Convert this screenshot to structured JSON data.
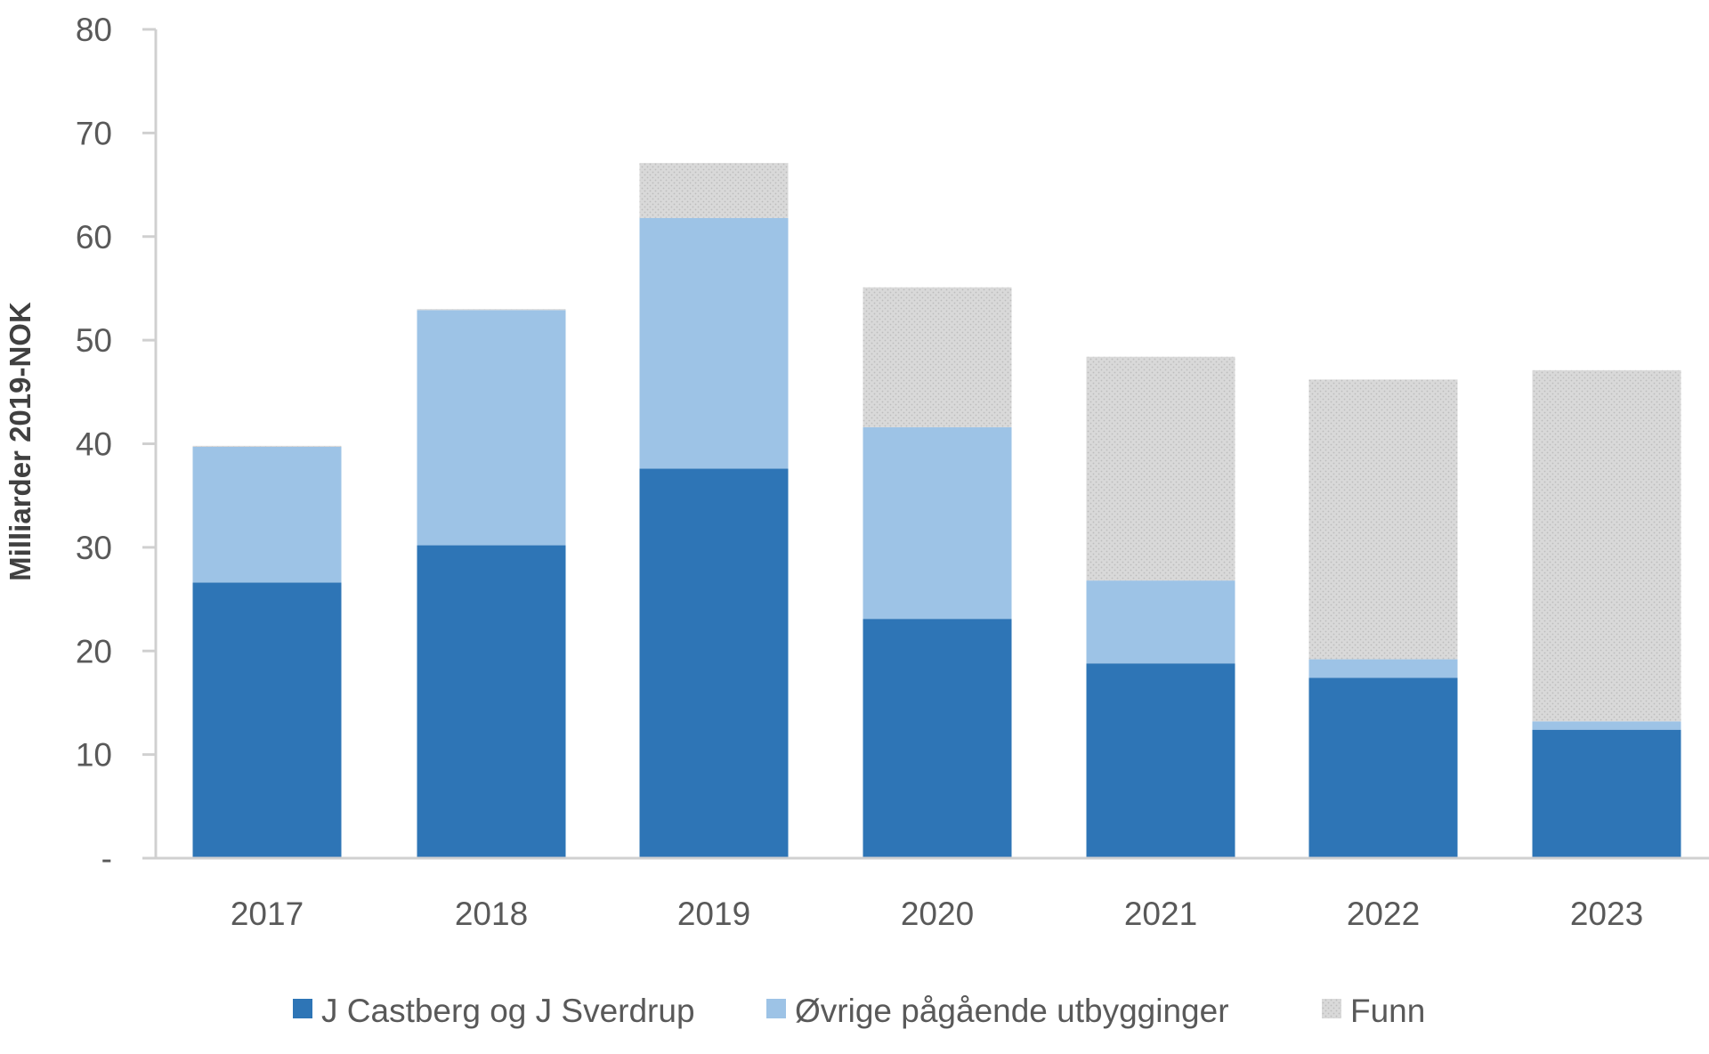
{
  "chart_data": {
    "type": "bar",
    "stacked": true,
    "title": "",
    "xlabel": "",
    "ylabel": "Milliarder 2019-NOK",
    "ylim": [
      0,
      80
    ],
    "yticks": [
      0,
      10,
      20,
      30,
      40,
      50,
      60,
      70,
      80
    ],
    "ytick_labels": [
      "-",
      "10",
      "20",
      "30",
      "40",
      "50",
      "60",
      "70",
      "80"
    ],
    "grid": false,
    "legend_position": "bottom",
    "categories": [
      "2017",
      "2018",
      "2019",
      "2020",
      "2021",
      "2022",
      "2023"
    ],
    "series": [
      {
        "name": "J Castberg og J Sverdrup",
        "color": "#2E75B6",
        "values": [
          26.6,
          30.2,
          37.6,
          23.1,
          18.8,
          17.4,
          12.4
        ]
      },
      {
        "name": "Øvrige pågående utbygginger",
        "color": "#9DC3E6",
        "values": [
          13.1,
          22.7,
          24.2,
          18.5,
          8.0,
          1.8,
          0.8
        ]
      },
      {
        "name": "Funn",
        "color": "#D9D9D9",
        "pattern": "dotted",
        "values": [
          0.1,
          0.1,
          5.3,
          13.5,
          21.6,
          27.0,
          33.9
        ]
      }
    ]
  }
}
